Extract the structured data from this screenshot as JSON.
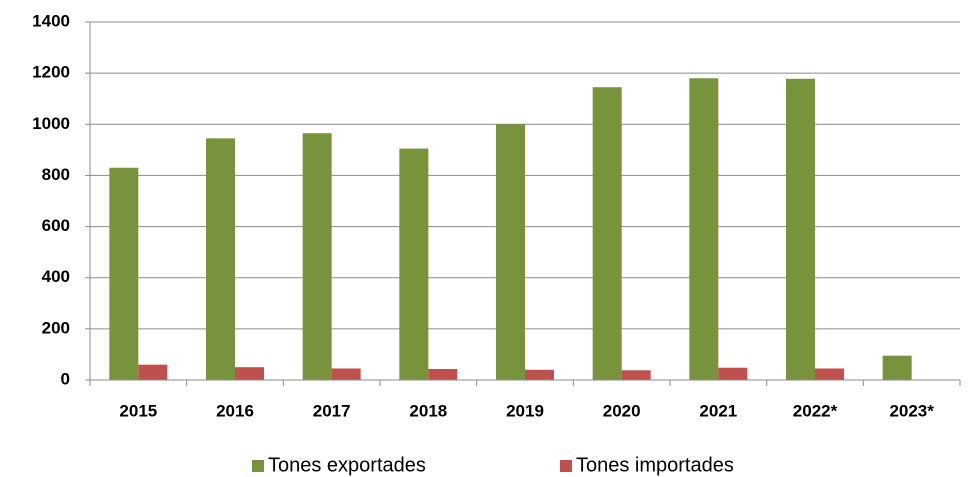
{
  "chart_data": {
    "type": "bar",
    "categories": [
      "2015",
      "2016",
      "2017",
      "2018",
      "2019",
      "2020",
      "2021",
      "2022*",
      "2023*"
    ],
    "series": [
      {
        "name": "Tones exportades",
        "color": "#77933c",
        "values": [
          830,
          945,
          965,
          905,
          1000,
          1145,
          1180,
          1178,
          95
        ]
      },
      {
        "name": "Tones importades",
        "color": "#c0504d",
        "values": [
          60,
          50,
          45,
          43,
          40,
          38,
          48,
          45,
          null
        ]
      }
    ],
    "ylim": [
      0,
      1400
    ],
    "yticks": [
      0,
      200,
      400,
      600,
      800,
      1000,
      1200,
      1400
    ],
    "grid": true,
    "legend": "bottom"
  }
}
